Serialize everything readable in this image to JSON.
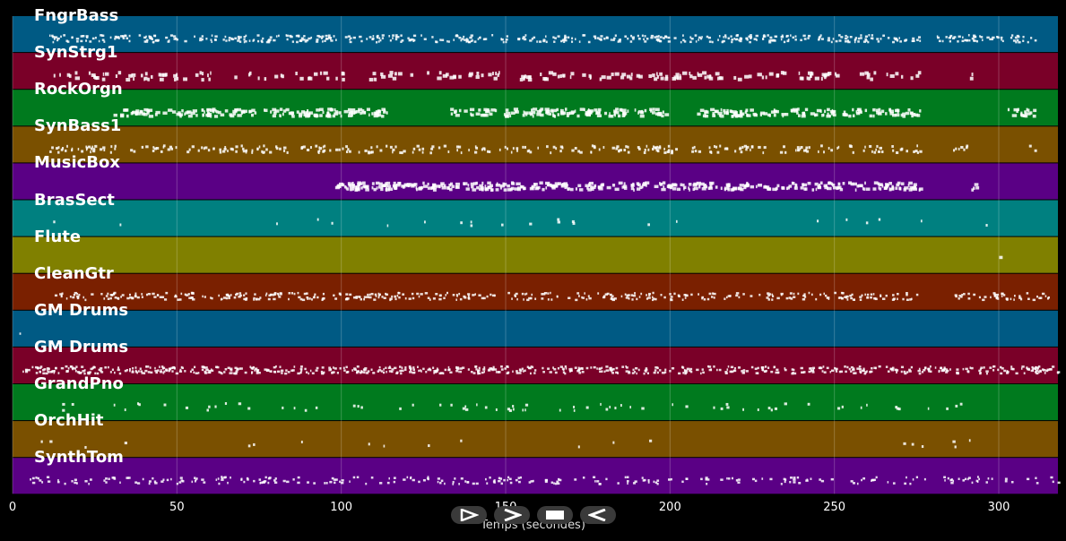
{
  "colors": {
    "background": "#000000",
    "track_palette": [
      "#005a84",
      "#7a0028",
      "#007a1e",
      "#7a5000",
      "#5a0085",
      "#008080",
      "#808000",
      "#7a2000"
    ],
    "note": "#ffffff",
    "grid": "#ffffff"
  },
  "axis": {
    "xmin": 0,
    "xmax": 318,
    "ticks": [
      0,
      50,
      100,
      150,
      200,
      250,
      300
    ],
    "xlabel": "Temps (secondes)"
  },
  "tracks": [
    {
      "name": "FngrBass",
      "color": "#005a84",
      "density": 0.8,
      "note_height": 3,
      "segments": [
        [
          11,
          276
        ],
        [
          281,
          311
        ]
      ]
    },
    {
      "name": "SynStrg1",
      "color": "#7a0028",
      "density": 0.35,
      "note_height": 6,
      "segments": [
        [
          12,
          276
        ],
        [
          291,
          293
        ]
      ]
    },
    {
      "name": "RockOrgn",
      "color": "#007a1e",
      "density": 0.9,
      "note_height": 5,
      "segments": [
        [
          30,
          114
        ],
        [
          133,
          199
        ],
        [
          208,
          276
        ],
        [
          302,
          311
        ]
      ]
    },
    {
      "name": "SynBass1",
      "color": "#7a5000",
      "density": 0.5,
      "note_height": 4,
      "segments": [
        [
          11,
          276
        ],
        [
          285,
          291
        ],
        [
          309,
          311
        ]
      ]
    },
    {
      "name": "MusicBox",
      "color": "#5a0085",
      "density": 1.0,
      "note_height": 5,
      "segments": [
        [
          98,
          276
        ],
        [
          291,
          293
        ]
      ]
    },
    {
      "name": "BrasSect",
      "color": "#008080",
      "density": 0.04,
      "note_height": 4,
      "segments": [
        [
          11,
          278
        ],
        [
          293,
          300
        ]
      ]
    },
    {
      "name": "Flute",
      "color": "#808000",
      "density": 0.01,
      "note_height": 5,
      "segments": [
        [
          300,
          302
        ]
      ]
    },
    {
      "name": "CleanGtr",
      "color": "#7a2000",
      "density": 0.7,
      "note_height": 3,
      "segments": [
        [
          12,
          276
        ],
        [
          286,
          316
        ]
      ]
    },
    {
      "name": "GM Drums",
      "color": "#005a84",
      "density": 0.02,
      "note_height": 3,
      "segments": [
        [
          2,
          4
        ]
      ]
    },
    {
      "name": "GM Drums",
      "color": "#7a0028",
      "density": 1.0,
      "note_height": 3,
      "segments": [
        [
          3,
          318
        ]
      ]
    },
    {
      "name": "GrandPno",
      "color": "#007a1e",
      "density": 0.12,
      "note_height": 4,
      "segments": [
        [
          11,
          293
        ]
      ]
    },
    {
      "name": "OrchHit",
      "color": "#7a5000",
      "density": 0.03,
      "note_height": 4,
      "segments": [
        [
          4,
          312
        ]
      ]
    },
    {
      "name": "SynthTom",
      "color": "#5a0085",
      "density": 0.4,
      "note_height": 3,
      "segments": [
        [
          5,
          318
        ]
      ]
    }
  ],
  "controls": [
    {
      "name": "play-button",
      "glyph": "play"
    },
    {
      "name": "fast-forward-button",
      "glyph": "forward"
    },
    {
      "name": "stop-button",
      "glyph": "stop"
    },
    {
      "name": "rewind-button",
      "glyph": "back"
    }
  ]
}
